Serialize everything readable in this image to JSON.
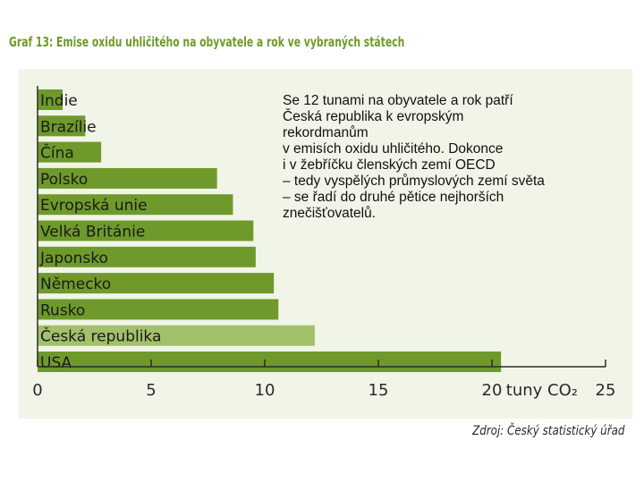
{
  "chart_data": {
    "type": "bar",
    "orientation": "horizontal",
    "title": "Graf 13: Emise oxidu uhličitého na obyvatele a rok ve vybraných státech",
    "xlabel": "tuny CO₂",
    "ylabel": "",
    "xlim": [
      0,
      25
    ],
    "xticks": [
      "0",
      "5",
      "10",
      "15",
      "20",
      "25"
    ],
    "categories": [
      "Indie",
      "Brazílie",
      "Čína",
      "Polsko",
      "Evropská unie",
      "Velká Británie",
      "Japonsko",
      "Německo",
      "Rusko",
      "Česká republika",
      "USA"
    ],
    "values": [
      1.1,
      2.1,
      2.8,
      7.9,
      8.6,
      9.5,
      9.6,
      10.4,
      10.6,
      12.2,
      20.4
    ],
    "highlight": "Česká republika",
    "colors": {
      "bar": "#6f9a2b",
      "highlight_bar": "#a3c06b",
      "background": "#f0f5e8"
    },
    "annotation": [
      "Se 12 tunami na obyvatele a rok patří",
      "Česká republika k evropským",
      "rekordmanům",
      "v emisích oxidu uhličitého. Dokonce",
      "i v žebříčku členských zemí OECD",
      "– tedy vyspělých průmyslových zemí světa",
      "– se řadí do druhé pětice nejhorších",
      "znečišťovatelů."
    ],
    "grid": false,
    "legend": "none"
  },
  "source": "Zdroj: Český statistický úřad"
}
